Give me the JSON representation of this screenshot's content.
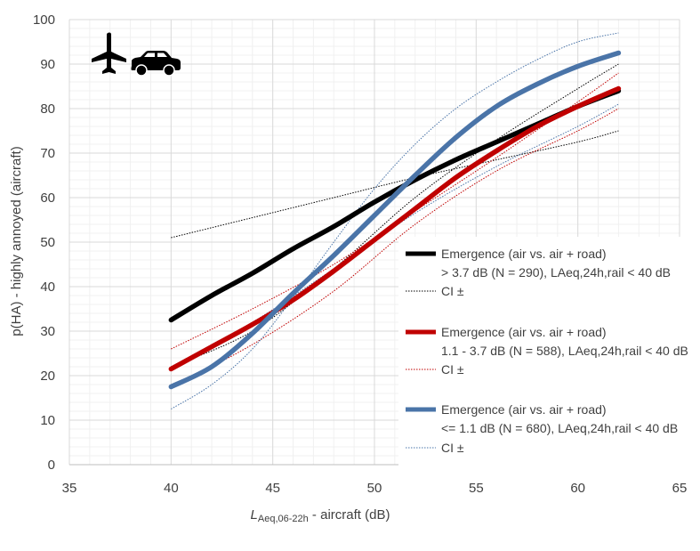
{
  "chart_data": {
    "type": "line",
    "xlim": [
      35,
      65
    ],
    "ylim": [
      0,
      100
    ],
    "x_ticks": [
      35,
      40,
      45,
      50,
      55,
      60,
      65
    ],
    "y_ticks": [
      0,
      10,
      20,
      30,
      40,
      50,
      60,
      70,
      80,
      90,
      100
    ],
    "grid": true,
    "minor_grid": true,
    "ylabel": "p(HA) - highly annoyed (aircraft)",
    "xlabel": {
      "prefix": "L",
      "subscript": "Aeq,06-22h",
      "suffix": " - aircraft (dB)"
    },
    "icons": [
      "airplane-icon",
      "car-icon"
    ],
    "legend_position": "right",
    "series": [
      {
        "key": "black",
        "legend_line1": "Emergence (air vs. air + road)",
        "legend_line2": "> 3.7 dB (N = 290), LAeq,24h,rail < 40 dB",
        "ci_label": "CI ±",
        "color": "#000000",
        "x": [
          40,
          42,
          44,
          46,
          48,
          50,
          52,
          54,
          56,
          58,
          60,
          62
        ],
        "y": [
          32.5,
          38,
          43,
          48.5,
          53.5,
          59,
          64,
          68.5,
          72.5,
          76.5,
          80.5,
          84
        ],
        "ci_upper": {
          "x": [
            40,
            44,
            48,
            52,
            56,
            60,
            62
          ],
          "y": [
            22,
            30,
            44,
            60,
            73,
            84.5,
            90
          ]
        },
        "ci_lower": {
          "x": [
            40,
            44,
            48,
            52,
            56,
            60,
            62
          ],
          "y": [
            51,
            55.5,
            60,
            64.5,
            68.5,
            72.5,
            75
          ]
        }
      },
      {
        "key": "red",
        "legend_line1": "Emergence (air vs. air + road)",
        "legend_line2": "1.1 - 3.7 dB (N = 588), LAeq,24h,rail < 40 dB",
        "ci_label": "CI ±",
        "color": "#c00000",
        "x": [
          40,
          42,
          44,
          46,
          48,
          50,
          52,
          54,
          56,
          58,
          60,
          62
        ],
        "y": [
          21.5,
          26.5,
          31.5,
          37,
          43.5,
          50.5,
          57.5,
          64.5,
          70.5,
          76,
          80.5,
          84.5
        ],
        "ci_upper": {
          "x": [
            40,
            44,
            48,
            52,
            56,
            60,
            62
          ],
          "y": [
            26,
            35,
            45,
            57,
            69,
            81.5,
            88
          ]
        },
        "ci_lower": {
          "x": [
            40,
            44,
            48,
            52,
            56,
            60,
            62
          ],
          "y": [
            17.5,
            27,
            39,
            54,
            66,
            75,
            80
          ]
        }
      },
      {
        "key": "blue",
        "legend_line1": "Emergence (air vs. air + road)",
        "legend_line2": "<= 1.1 dB (N = 680), LAeq,24h,rail < 40 dB",
        "ci_label": "CI ±",
        "color": "#4a74a8",
        "x": [
          40,
          42,
          44,
          46,
          48,
          50,
          52,
          54,
          56,
          58,
          60,
          62
        ],
        "y": [
          17.5,
          22,
          29.5,
          38.5,
          47,
          56,
          65,
          73.5,
          80.5,
          85.5,
          89.5,
          92.5
        ],
        "ci_upper": {
          "x": [
            40,
            42,
            44,
            46,
            48,
            50,
            52,
            54,
            56,
            58,
            60,
            62
          ],
          "y": [
            12.5,
            18,
            26,
            37.5,
            50,
            62,
            72,
            80,
            86,
            91,
            95,
            97
          ]
        },
        "ci_lower": {
          "x": [
            40,
            44,
            48,
            52,
            56,
            60,
            62
          ],
          "y": [
            22,
            32,
            44,
            56.5,
            67,
            76,
            81
          ]
        }
      }
    ]
  }
}
